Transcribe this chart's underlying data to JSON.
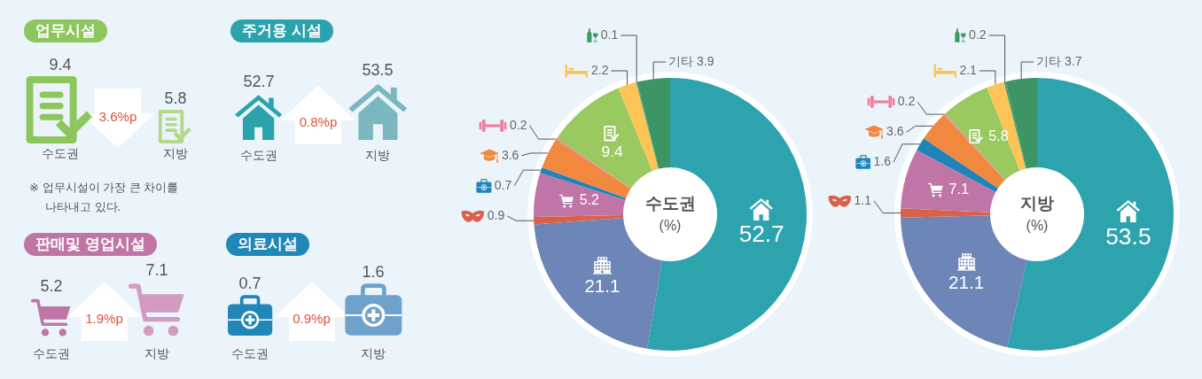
{
  "chart_data": [
    {
      "type": "other",
      "title": "업무시설",
      "categories": [
        "수도권",
        "지방"
      ],
      "values": [
        9.4,
        5.8
      ],
      "colors": [
        "#8dc65c",
        "#b3d98b"
      ],
      "annotations": [
        "3.6%p",
        "※ 업무시설이 가장 큰 차이를 나타내고 있다."
      ],
      "data_labels": true
    },
    {
      "type": "other",
      "title": "주거용 시설",
      "categories": [
        "수도권",
        "지방"
      ],
      "values": [
        52.7,
        53.5
      ],
      "colors": [
        "#2ba3ad",
        "#7ab7c0"
      ],
      "annotations": [
        "0.8%p"
      ],
      "data_labels": true
    },
    {
      "type": "other",
      "title": "판매및 영업시설",
      "categories": [
        "수도권",
        "지방"
      ],
      "values": [
        5.2,
        7.1
      ],
      "colors": [
        "#bf75a6",
        "#d39bc0"
      ],
      "annotations": [
        "1.9%p"
      ],
      "data_labels": true
    },
    {
      "type": "other",
      "title": "의료시설",
      "categories": [
        "수도권",
        "지방"
      ],
      "values": [
        0.7,
        1.6
      ],
      "colors": [
        "#2186b8",
        "#6fa2cb"
      ],
      "annotations": [
        "0.9%p"
      ],
      "data_labels": true
    },
    {
      "type": "donut",
      "title": "수도권",
      "subtitle": "(%)",
      "categories": [
        null,
        null,
        null,
        null,
        null,
        null,
        null,
        null,
        null,
        null,
        "기타"
      ],
      "values": [
        52.7,
        21.1,
        0.9,
        5.2,
        0.7,
        3.6,
        0.2,
        9.4,
        2.2,
        0.1,
        3.9
      ],
      "colors": [
        "#2da3ae",
        "#6e85b7",
        "#d9614a",
        "#bf76a6",
        "#2184b9",
        "#f0893f",
        "#f07f9b",
        "#99c95f",
        "#fdc458",
        "#3f9a63",
        "#3d9566"
      ],
      "data_labels": true
    },
    {
      "type": "donut",
      "title": "지방",
      "subtitle": "(%)",
      "categories": [
        null,
        null,
        null,
        null,
        null,
        null,
        null,
        null,
        null,
        null,
        "기타"
      ],
      "values": [
        53.5,
        21.1,
        1.1,
        7.1,
        1.6,
        3.6,
        0.2,
        5.8,
        2.1,
        0.2,
        3.7
      ],
      "colors": [
        "#2da3ae",
        "#6e85b7",
        "#d9614a",
        "#bf76a6",
        "#2184b9",
        "#f0893f",
        "#f07f9b",
        "#99c95f",
        "#fdc458",
        "#3f9a63",
        "#3d9566"
      ],
      "data_labels": true
    }
  ]
}
